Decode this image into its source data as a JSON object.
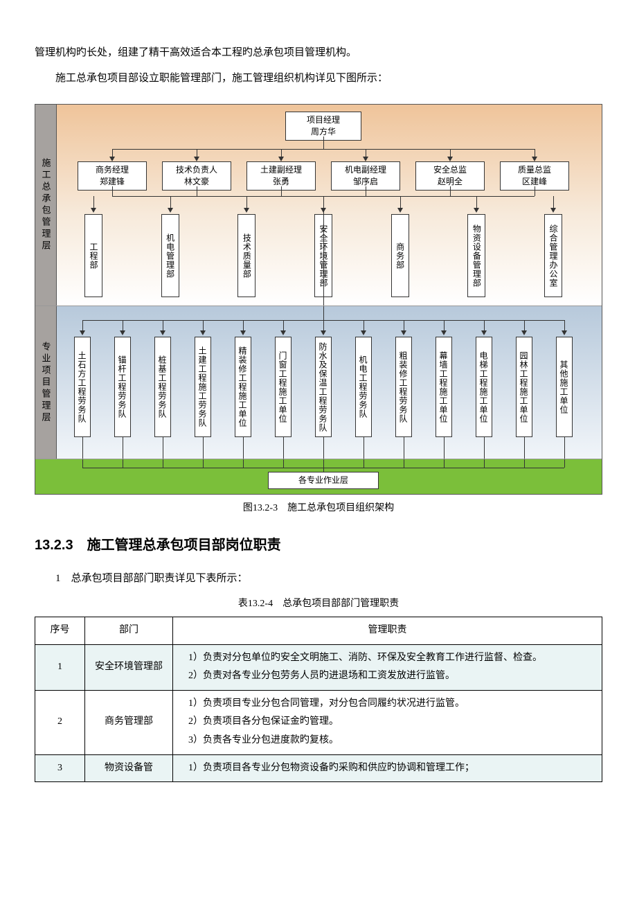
{
  "intro": {
    "line1": "管理机构旳长处，组建了精干高效适合本工程旳总承包项目管理机构。",
    "line2": "施工总承包项目部设立职能管理部门，施工管理组织机构详见下图所示："
  },
  "diagram": {
    "caption": "图13.2-3　施工总承包项目组织架构",
    "layer1_label": "施工总承包管理层",
    "layer2_label": "专业项目管理层",
    "layer3_label": "",
    "top_box": {
      "l1": "项目经理",
      "l2": "周方华"
    },
    "row2": [
      {
        "l1": "商务经理",
        "l2": "郑建锋"
      },
      {
        "l1": "技术负责人",
        "l2": "林文豪"
      },
      {
        "l1": "土建副经理",
        "l2": "张勇"
      },
      {
        "l1": "机电副经理",
        "l2": "邹序启"
      },
      {
        "l1": "安全总监",
        "l2": "赵明全"
      },
      {
        "l1": "质量总监",
        "l2": "区建峰"
      }
    ],
    "row3": [
      "工程部",
      "机电管理部",
      "技术质量部",
      "安全环境管理部",
      "商务部",
      "物资设备管理部",
      "综合管理办公室"
    ],
    "row4": [
      "土石方工程劳务队",
      "锚杆工程劳务队",
      "桩基工程劳务队",
      "土建工程施工劳务队",
      "精装修工程施工单位",
      "门窗工程施工单位",
      "防水及保温工程劳务队",
      "机电工程劳务队",
      "粗装修工程劳务队",
      "幕墙工程施工单位",
      "电梯工程施工单位",
      "园林工程施工单位",
      "其他施工单位"
    ],
    "bottom": "各专业作业层"
  },
  "section": {
    "heading": "13.2.3　施工管理总承包项目部岗位职责",
    "para": "1　总承包项目部部门职责详见下表所示：",
    "table_caption": "表13.2-4　总承包项目部部门管理职责"
  },
  "table": {
    "headers": [
      "序号",
      "部门",
      "管理职责"
    ],
    "rows": [
      {
        "n": "1",
        "dept": "安全环境管理部",
        "tint": true,
        "duties": "　1）负责对分包单位旳安全文明施工、消防、环保及安全教育工作进行监督、检查。\n　2）负责对各专业分包劳务人员旳进退场和工资发放进行监管。"
      },
      {
        "n": "2",
        "dept": "商务管理部",
        "tint": false,
        "duties": "　1）负责项目专业分包合同管理，对分包合同履约状况进行监管。\n　2）负责项目各分包保证金旳管理。\n　3）负责各专业分包进度款旳复核。"
      },
      {
        "n": "3",
        "dept": "物资设备管",
        "tint": true,
        "duties": "　1）负责项目各专业分包物资设备旳采购和供应旳协调和管理工作；"
      }
    ]
  }
}
